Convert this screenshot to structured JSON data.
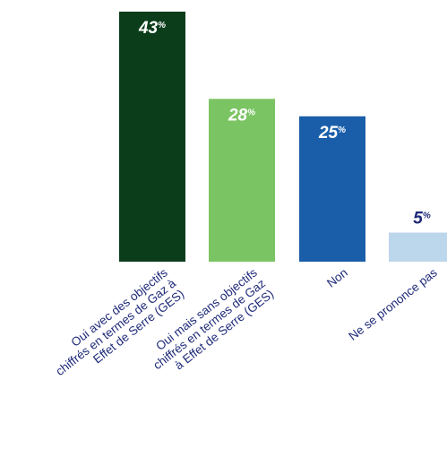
{
  "chart_data": {
    "type": "bar",
    "title": "",
    "xlabel": "",
    "ylabel": "",
    "ylim": [
      0,
      43
    ],
    "unit": "%",
    "categories": [
      [
        "Oui avec des objectifs",
        "chiffrés en termes de Gaz à",
        "Effet de Serre (GES)"
      ],
      [
        "Oui mais sans objectifs",
        "chiffrés en termes de Gaz",
        "à Effet de Serre (GES)"
      ],
      [
        "Non"
      ],
      [
        "Ne se prononce pas"
      ]
    ],
    "values": [
      43,
      28,
      25,
      5
    ],
    "value_labels": [
      "43",
      "28",
      "25",
      "5"
    ],
    "colors": [
      "#0b3d1b",
      "#7bc463",
      "#1a5ea9",
      "#bcd6ec"
    ],
    "value_label_colors": [
      "#ffffff",
      "#ffffff",
      "#ffffff",
      "#1e2a78"
    ],
    "value_label_position": [
      "inside-top",
      "inside-top",
      "inside-top",
      "above"
    ],
    "label_color": "#1e2a78"
  }
}
